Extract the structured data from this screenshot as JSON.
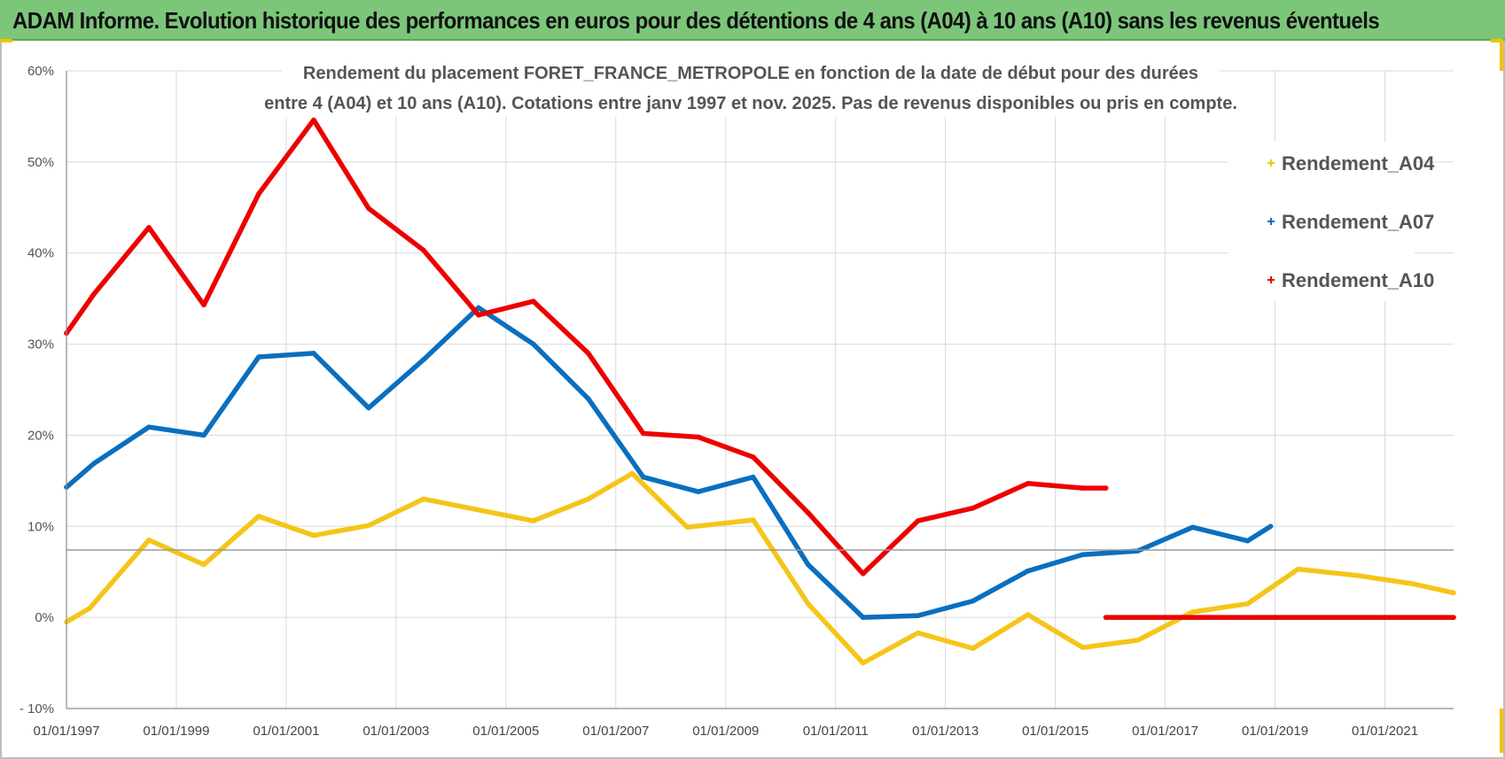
{
  "header": {
    "title": "ADAM Informe. Evolution historique des performances en euros pour des détentions de 4 ans (A04) à 10 ans (A10) sans les revenus éventuels"
  },
  "colors": {
    "banner": "#7cc67a",
    "a04": "#f5c518",
    "a07": "#0a6fbf",
    "a10": "#ee0000",
    "grid": "#d9d9d9"
  },
  "chart_data": {
    "type": "line",
    "title_line1": "Rendement du placement FORET_FRANCE_METROPOLE en fonction de la date de début pour des durées",
    "title_line2": "entre 4 (A04) et 10 ans (A10).  Cotations entre janv 1997 et nov. 2025. Pas de revenus disponibles ou pris en compte.",
    "xlabel": "",
    "ylabel": "",
    "xlim": [
      1997.0,
      2022.25
    ],
    "ylim": [
      -10,
      60
    ],
    "y_ticks": [
      -10,
      0,
      10,
      20,
      30,
      40,
      50,
      60
    ],
    "y_tick_labels": [
      "- 10%",
      "0%",
      "10%",
      "20%",
      "30%",
      "40%",
      "50%",
      "60%"
    ],
    "x_ticks": [
      1997,
      1999,
      2001,
      2003,
      2005,
      2007,
      2009,
      2011,
      2013,
      2015,
      2017,
      2019,
      2021
    ],
    "x_tick_labels": [
      "01/01/1997",
      "01/01/1999",
      "01/01/2001",
      "01/01/2003",
      "01/01/2005",
      "01/01/2007",
      "01/01/2009",
      "01/01/2011",
      "01/01/2013",
      "01/01/2015",
      "01/01/2017",
      "01/01/2019",
      "01/01/2021"
    ],
    "legend_position": "top-right",
    "series": [
      {
        "name": "Rendement_A04",
        "color": "#f5c518",
        "x": [
          1997.0,
          1997.42,
          1998.5,
          1999.5,
          2000.5,
          2001.5,
          2002.5,
          2003.5,
          2005.5,
          2006.5,
          2007.3,
          2008.3,
          2009.5,
          2010.5,
          2011.5,
          2012.5,
          2013.5,
          2014.5,
          2015.5,
          2016.5,
          2017.5,
          2018.5,
          2019.42,
          2020.5,
          2021.5,
          2022.25
        ],
        "values": [
          -0.5,
          1.0,
          8.5,
          5.8,
          11.1,
          9.0,
          10.1,
          13.0,
          10.6,
          13.0,
          15.8,
          9.9,
          10.7,
          1.5,
          -5.0,
          -1.7,
          -3.4,
          0.3,
          -3.3,
          -2.5,
          0.6,
          1.5,
          5.3,
          4.6,
          3.7,
          2.7
        ]
      },
      {
        "name": "Rendement_A07",
        "color": "#0a6fbf",
        "x": [
          1997.0,
          1997.5,
          1998.5,
          1999.5,
          2000.5,
          2001.5,
          2002.5,
          2003.5,
          2004.5,
          2005.5,
          2006.5,
          2007.5,
          2008.5,
          2009.5,
          2010.5,
          2011.5,
          2012.5,
          2013.5,
          2014.5,
          2015.5,
          2016.5,
          2017.5,
          2018.5,
          2018.92
        ],
        "values": [
          14.3,
          16.9,
          20.9,
          20.0,
          28.6,
          29.0,
          23.0,
          28.3,
          34.0,
          30.0,
          24.0,
          15.4,
          13.8,
          15.4,
          5.8,
          0.0,
          0.2,
          1.8,
          5.1,
          6.9,
          7.3,
          9.9,
          8.4,
          10.0
        ]
      },
      {
        "name": "Rendement_A10",
        "color": "#ee0000",
        "x": [
          1997.0,
          1997.5,
          1998.5,
          1999.5,
          2000.5,
          2001.5,
          2002.5,
          2003.5,
          2004.5,
          2005.5,
          2006.5,
          2007.5,
          2008.5,
          2009.5,
          2010.5,
          2011.5,
          2012.5,
          2013.5,
          2014.5,
          2015.5,
          2015.92
        ],
        "values": [
          31.2,
          35.5,
          42.8,
          34.3,
          46.5,
          54.6,
          44.9,
          40.3,
          33.2,
          34.7,
          29.0,
          20.2,
          19.8,
          17.6,
          11.5,
          4.8,
          10.6,
          12.0,
          14.7,
          14.2,
          14.2
        ]
      },
      {
        "name": "Rendement_A10 (flat)",
        "color": "#ee0000",
        "legend": false,
        "x": [
          2015.92,
          2022.25
        ],
        "values": [
          0.0,
          0.0
        ]
      }
    ],
    "legend": [
      "Rendement_A04",
      "Rendement_A07",
      "Rendement_A10"
    ]
  }
}
